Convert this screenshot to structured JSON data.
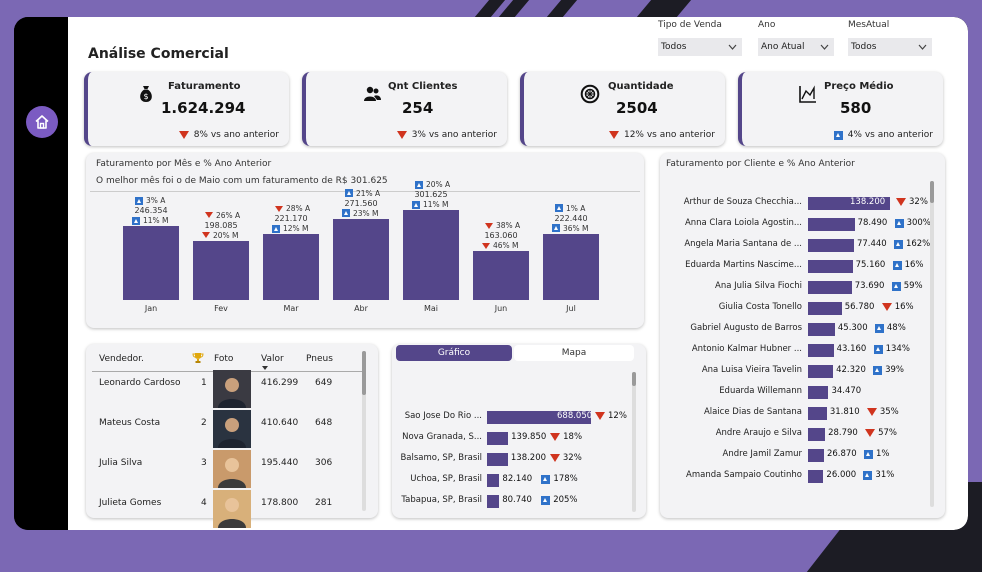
{
  "page_title": "Análise Comercial",
  "filters": [
    {
      "label": "Tipo de Venda",
      "value": "Todos"
    },
    {
      "label": "Ano",
      "value": "Ano Atual"
    },
    {
      "label": "MesAtual",
      "value": "Todos"
    }
  ],
  "kpis": [
    {
      "label": "Faturamento",
      "value": "1.624.294",
      "var": "8% vs ano anterior",
      "dir": "down",
      "icon": "money-bag-icon"
    },
    {
      "label": "Qnt Clientes",
      "value": "254",
      "var": "3% vs ano anterior",
      "dir": "down",
      "icon": "users-icon"
    },
    {
      "label": "Quantidade",
      "value": "2504",
      "var": "12% vs ano anterior",
      "dir": "down",
      "icon": "tire-icon"
    },
    {
      "label": "Preço Médio",
      "value": "580",
      "var": "4% vs ano anterior",
      "dir": "up",
      "icon": "chart-area-icon"
    }
  ],
  "monthly": {
    "title": "Faturamento por Mês e % Ano Anterior",
    "subtitle": "O melhor mês foi o de Maio com um faturamento de R$ 301.625"
  },
  "sellers": {
    "headers": [
      "Vendedor.",
      "Foto",
      "Valor",
      "Pneus"
    ],
    "rows": [
      {
        "name": "Leonardo Cardoso",
        "rank": "1",
        "valor": "416.299",
        "pneus": "649"
      },
      {
        "name": "Mateus Costa",
        "rank": "2",
        "valor": "410.640",
        "pneus": "648"
      },
      {
        "name": "Julia Silva",
        "rank": "3",
        "valor": "195.440",
        "pneus": "306"
      },
      {
        "name": "Julieta Gomes",
        "rank": "4",
        "valor": "178.800",
        "pneus": "281"
      }
    ]
  },
  "cities": {
    "tabs": [
      "Gráfico",
      "Mapa"
    ],
    "rows": [
      {
        "name": "Sao Jose Do Rio ...",
        "value": "688.050",
        "pct": "12%",
        "dir": "down"
      },
      {
        "name": "Nova Granada, S...",
        "value": "139.850",
        "pct": "18%",
        "dir": "down"
      },
      {
        "name": "Balsamo, SP, Brasil",
        "value": "138.200",
        "pct": "32%",
        "dir": "down"
      },
      {
        "name": "Uchoa, SP, Brasil",
        "value": "82.140",
        "pct": "178%",
        "dir": "up"
      },
      {
        "name": "Tabapua, SP, Brasil",
        "value": "80.740",
        "pct": "205%",
        "dir": "up"
      }
    ]
  },
  "clients": {
    "title": "Faturamento por Cliente e % Ano Anterior",
    "rows": [
      {
        "name": "Arthur de Souza Checchia...",
        "value": "138.200",
        "pct": "32%",
        "dir": "down"
      },
      {
        "name": "Anna Clara Loiola Agostin...",
        "value": "78.490",
        "pct": "300%",
        "dir": "up"
      },
      {
        "name": "Angela Maria Santana de ...",
        "value": "77.440",
        "pct": "162%",
        "dir": "up"
      },
      {
        "name": "Eduarda Martins Nascime...",
        "value": "75.160",
        "pct": "16%",
        "dir": "up"
      },
      {
        "name": "Ana Julia Silva Fiochi",
        "value": "73.690",
        "pct": "59%",
        "dir": "up"
      },
      {
        "name": "Giulia Costa Tonello",
        "value": "56.780",
        "pct": "16%",
        "dir": "down"
      },
      {
        "name": "Gabriel Augusto de Barros",
        "value": "45.300",
        "pct": "48%",
        "dir": "up"
      },
      {
        "name": "Antonio Kalmar Hubner ...",
        "value": "43.160",
        "pct": "134%",
        "dir": "up"
      },
      {
        "name": "Ana Luisa Vieira Tavelin",
        "value": "42.320",
        "pct": "39%",
        "dir": "up"
      },
      {
        "name": "Eduarda Willemann",
        "value": "34.470",
        "pct": "",
        "dir": "none"
      },
      {
        "name": "Alaice Dias de Santana",
        "value": "31.810",
        "pct": "35%",
        "dir": "down"
      },
      {
        "name": "Andre Araujo e Silva",
        "value": "28.790",
        "pct": "57%",
        "dir": "down"
      },
      {
        "name": "Andre Jamil Zamur",
        "value": "26.870",
        "pct": "1%",
        "dir": "up"
      },
      {
        "name": "Amanda Sampaio Coutinho",
        "value": "26.000",
        "pct": "31%",
        "dir": "up"
      }
    ]
  },
  "chart_data": {
    "type": "bar",
    "categories": [
      "Jan",
      "Fev",
      "Mar",
      "Abr",
      "Mai",
      "Jun",
      "Jul"
    ],
    "values": [
      246354,
      198085,
      221170,
      271560,
      301625,
      163060,
      222440
    ],
    "value_labels": [
      "246.354",
      "198.085",
      "221.170",
      "271.560",
      "301.625",
      "163.060",
      "222.440"
    ],
    "vs_ano": [
      {
        "pct": "3% A",
        "dir": "up"
      },
      {
        "pct": "26% A",
        "dir": "down"
      },
      {
        "pct": "28% A",
        "dir": "down"
      },
      {
        "pct": "21% A",
        "dir": "up"
      },
      {
        "pct": "20% A",
        "dir": "up"
      },
      {
        "pct": "38% A",
        "dir": "down"
      },
      {
        "pct": "1% A",
        "dir": "up"
      }
    ],
    "vs_mes": [
      {
        "pct": "11% M",
        "dir": "up"
      },
      {
        "pct": "20% M",
        "dir": "down"
      },
      {
        "pct": "12% M",
        "dir": "up"
      },
      {
        "pct": "23% M",
        "dir": "up"
      },
      {
        "pct": "11% M",
        "dir": "up"
      },
      {
        "pct": "46% M",
        "dir": "down"
      },
      {
        "pct": "36% M",
        "dir": "up"
      }
    ],
    "ylim": [
      0,
      320000
    ]
  }
}
